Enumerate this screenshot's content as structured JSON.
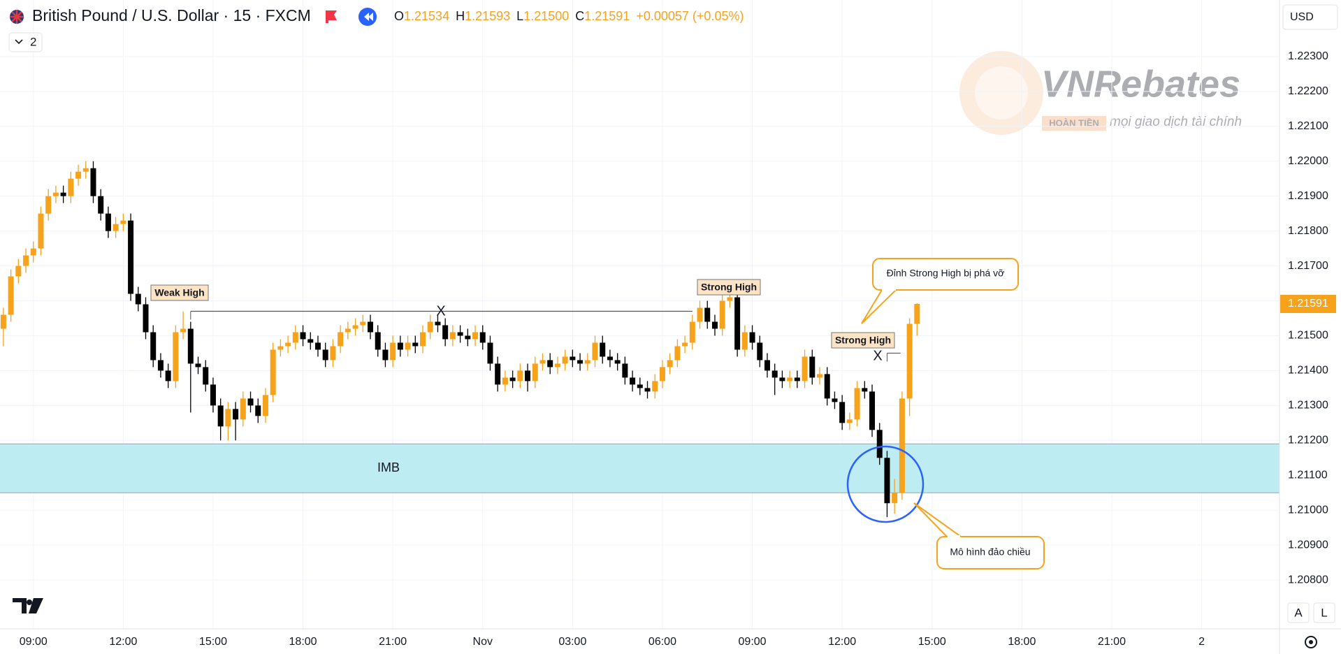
{
  "header": {
    "title": "British Pound / U.S. Dollar · 15 · FXCM",
    "fields": [
      {
        "label": "O",
        "value": "1.21534"
      },
      {
        "label": "H",
        "value": "1.21593"
      },
      {
        "label": "L",
        "value": "1.21500"
      },
      {
        "label": "C",
        "value": "1.21591"
      }
    ],
    "change": "+0.00057 (+0.05%)",
    "currency": "USD",
    "indicator_count": "2"
  },
  "controls": {
    "auto": "A",
    "log": "L"
  },
  "watermark": {
    "brand": "VNRebates",
    "badge": "HOÀN TIỀN",
    "slogan": "mọi giao dịch tài chính"
  },
  "chart_data": {
    "type": "candlestick",
    "colors": {
      "up": "#f7a21b",
      "down": "#000000"
    },
    "grid": true,
    "xlim": [
      7.886,
      50.6
    ],
    "xticks": [
      {
        "value": 9,
        "label": "09:00"
      },
      {
        "value": 12,
        "label": "12:00"
      },
      {
        "value": 15,
        "label": "15:00"
      },
      {
        "value": 18,
        "label": "18:00"
      },
      {
        "value": 21,
        "label": "21:00"
      },
      {
        "value": 24,
        "label": "Nov"
      },
      {
        "value": 27,
        "label": "03:00"
      },
      {
        "value": 30,
        "label": "06:00"
      },
      {
        "value": 33,
        "label": "09:00"
      },
      {
        "value": 36,
        "label": "12:00"
      },
      {
        "value": 39,
        "label": "15:00"
      },
      {
        "value": 42,
        "label": "18:00"
      },
      {
        "value": 45,
        "label": "21:00"
      },
      {
        "value": 48,
        "label": "2"
      }
    ],
    "ylim": [
      1.2066,
      1.22462
    ],
    "yticks": [
      {
        "value": 1.208,
        "label": "1.20800"
      },
      {
        "value": 1.209,
        "label": "1.20900"
      },
      {
        "value": 1.21,
        "label": "1.21000"
      },
      {
        "value": 1.211,
        "label": "1.21100"
      },
      {
        "value": 1.212,
        "label": "1.21200"
      },
      {
        "value": 1.213,
        "label": "1.21300"
      },
      {
        "value": 1.214,
        "label": "1.21400"
      },
      {
        "value": 1.215,
        "label": "1.21500"
      },
      {
        "value": 1.216,
        "label": "1.21600"
      },
      {
        "value": 1.217,
        "label": "1.21700"
      },
      {
        "value": 1.218,
        "label": "1.21800"
      },
      {
        "value": 1.219,
        "label": "1.21900"
      },
      {
        "value": 1.22,
        "label": "1.22000"
      },
      {
        "value": 1.221,
        "label": "1.22100"
      },
      {
        "value": 1.222,
        "label": "1.22200"
      },
      {
        "value": 1.223,
        "label": "1.22300"
      }
    ],
    "x": [
      8,
      8.25,
      8.5,
      8.75,
      9,
      9.25,
      9.5,
      9.75,
      10,
      10.25,
      10.5,
      10.75,
      11,
      11.25,
      11.5,
      11.75,
      12,
      12.25,
      12.5,
      12.75,
      13,
      13.25,
      13.5,
      13.75,
      14,
      14.25,
      14.5,
      14.75,
      15,
      15.25,
      15.5,
      15.75,
      16,
      16.25,
      16.5,
      16.75,
      17,
      17.25,
      17.5,
      17.75,
      18,
      18.25,
      18.5,
      18.75,
      19,
      19.25,
      19.5,
      19.75,
      20,
      20.25,
      20.5,
      20.75,
      21,
      21.25,
      21.5,
      21.75,
      22,
      22.25,
      22.5,
      22.75,
      23,
      23.25,
      23.5,
      23.75,
      24,
      24.25,
      24.5,
      24.75,
      25,
      25.25,
      25.5,
      25.75,
      26,
      26.25,
      26.5,
      26.75,
      27,
      27.25,
      27.5,
      27.75,
      28,
      28.25,
      28.5,
      28.75,
      29,
      29.25,
      29.5,
      29.75,
      30,
      30.25,
      30.5,
      30.75,
      31,
      31.25,
      31.5,
      31.75,
      32,
      32.25,
      32.5,
      32.75,
      33,
      33.25,
      33.5,
      33.75,
      34,
      34.25,
      34.5,
      34.75,
      35,
      35.25,
      35.5,
      35.75,
      36,
      36.25,
      36.5,
      36.75,
      37,
      37.25,
      37.5,
      37.75,
      38,
      38.25,
      38.5
    ],
    "open": [
      1.2152,
      1.2156,
      1.2167,
      1.217,
      1.2173,
      1.2175,
      1.2185,
      1.219,
      1.2191,
      1.219,
      1.2195,
      1.2197,
      1.2198,
      1.219,
      1.2185,
      1.218,
      1.2182,
      1.2183,
      1.2162,
      1.2159,
      1.2151,
      1.2143,
      1.214,
      1.2137,
      1.2151,
      1.2152,
      1.2142,
      1.2141,
      1.2136,
      1.213,
      1.2124,
      1.2129,
      1.2126,
      1.2132,
      1.213,
      1.2127,
      1.2133,
      1.2146,
      1.2147,
      1.2148,
      1.2151,
      1.2149,
      1.2148,
      1.2146,
      1.2143,
      1.2147,
      1.2151,
      1.2152,
      1.2153,
      1.2154,
      1.2151,
      1.2146,
      1.2143,
      1.2148,
      1.2146,
      1.2148,
      1.2147,
      1.2151,
      1.2154,
      1.2153,
      1.2149,
      1.2151,
      1.215,
      1.2149,
      1.2151,
      1.2148,
      1.2142,
      1.2136,
      1.2138,
      1.2137,
      1.214,
      1.2137,
      1.2142,
      1.2143,
      1.2141,
      1.2142,
      1.2144,
      1.2143,
      1.2142,
      1.2143,
      1.2148,
      1.2144,
      1.2143,
      1.2142,
      1.2138,
      1.2136,
      1.2135,
      1.2134,
      1.2137,
      1.2141,
      1.2143,
      1.2147,
      1.2148,
      1.2154,
      1.2158,
      1.2154,
      1.2152,
      1.216,
      1.2161,
      1.2146,
      1.2151,
      1.2148,
      1.2143,
      1.214,
      1.2138,
      1.2137,
      1.2138,
      1.2137,
      1.2144,
      1.2138,
      1.2139,
      1.2132,
      1.2131,
      1.2125,
      1.2126,
      1.2135,
      1.2134,
      1.2123,
      1.2115,
      1.2102,
      1.2105,
      1.2132,
      1.21534
    ],
    "high": [
      1.2158,
      1.2169,
      1.2172,
      1.2175,
      1.2177,
      1.2187,
      1.2192,
      1.2193,
      1.2193,
      1.2197,
      1.2199,
      1.22,
      1.22,
      1.2192,
      1.2187,
      1.2184,
      1.2185,
      1.2185,
      1.2164,
      1.2161,
      1.2153,
      1.2145,
      1.2142,
      1.2153,
      1.2157,
      1.2154,
      1.2144,
      1.2143,
      1.2138,
      1.2132,
      1.2131,
      1.2131,
      1.2134,
      1.2134,
      1.2132,
      1.2135,
      1.2148,
      1.2149,
      1.215,
      1.2153,
      1.2153,
      1.2151,
      1.215,
      1.2148,
      1.2149,
      1.2153,
      1.2154,
      1.2155,
      1.2156,
      1.2156,
      1.2153,
      1.2148,
      1.215,
      1.215,
      1.215,
      1.215,
      1.2153,
      1.2156,
      1.2156,
      1.2155,
      1.2153,
      1.2153,
      1.2152,
      1.2153,
      1.2153,
      1.215,
      1.2144,
      1.214,
      1.214,
      1.2142,
      1.2142,
      1.2144,
      1.2145,
      1.2145,
      1.2144,
      1.2146,
      1.2146,
      1.2145,
      1.2145,
      1.215,
      1.215,
      1.2146,
      1.2145,
      1.2144,
      1.214,
      1.2138,
      1.2137,
      1.2139,
      1.2143,
      1.2145,
      1.2149,
      1.215,
      1.2156,
      1.216,
      1.216,
      1.2156,
      1.2162,
      1.2163,
      1.2163,
      1.2153,
      1.2153,
      1.215,
      1.2145,
      1.2142,
      1.214,
      1.214,
      1.214,
      1.2146,
      1.2146,
      1.2141,
      1.2141,
      1.2134,
      1.2133,
      1.2128,
      1.2137,
      1.2137,
      1.2136,
      1.2125,
      1.2117,
      1.2109,
      1.2134,
      1.2155,
      1.21593
    ],
    "low": [
      1.2147,
      1.2154,
      1.2165,
      1.2168,
      1.2171,
      1.2173,
      1.2183,
      1.2188,
      1.2188,
      1.2188,
      1.2193,
      1.2195,
      1.2188,
      1.2183,
      1.2178,
      1.2178,
      1.218,
      1.216,
      1.2157,
      1.2149,
      1.2141,
      1.2138,
      1.2135,
      1.2135,
      1.2149,
      1.2128,
      1.2139,
      1.2134,
      1.2128,
      1.212,
      1.212,
      1.212,
      1.2124,
      1.2128,
      1.2125,
      1.2125,
      1.2131,
      1.2144,
      1.2145,
      1.2146,
      1.2147,
      1.2146,
      1.2144,
      1.2141,
      1.2141,
      1.2145,
      1.2149,
      1.215,
      1.2151,
      1.2149,
      1.2144,
      1.2141,
      1.2141,
      1.2144,
      1.2144,
      1.2145,
      1.2145,
      1.2149,
      1.2151,
      1.2147,
      1.2147,
      1.2148,
      1.2147,
      1.2147,
      1.2146,
      1.214,
      1.2134,
      1.2134,
      1.2135,
      1.2135,
      1.2134,
      1.2135,
      1.214,
      1.2139,
      1.2139,
      1.214,
      1.2141,
      1.214,
      1.214,
      1.2141,
      1.2142,
      1.2141,
      1.214,
      1.2136,
      1.2134,
      1.2133,
      1.2132,
      1.2132,
      1.2135,
      1.2139,
      1.2141,
      1.2145,
      1.2146,
      1.2152,
      1.2152,
      1.215,
      1.215,
      1.2158,
      1.2144,
      1.2144,
      1.2146,
      1.2141,
      1.2138,
      1.2133,
      1.2135,
      1.2135,
      1.2135,
      1.2135,
      1.2136,
      1.2136,
      1.213,
      1.2129,
      1.2123,
      1.2123,
      1.2124,
      1.2132,
      1.2121,
      1.2113,
      1.2098,
      1.2099,
      1.2103,
      1.2127,
      1.215
    ],
    "close": [
      1.2156,
      1.2167,
      1.217,
      1.2173,
      1.2175,
      1.2185,
      1.219,
      1.2191,
      1.219,
      1.2195,
      1.2197,
      1.2198,
      1.219,
      1.2185,
      1.218,
      1.2182,
      1.2183,
      1.2162,
      1.2159,
      1.2151,
      1.2143,
      1.214,
      1.2137,
      1.2151,
      1.2152,
      1.2142,
      1.2141,
      1.2136,
      1.213,
      1.2124,
      1.2129,
      1.2126,
      1.2132,
      1.213,
      1.2127,
      1.2133,
      1.2146,
      1.2147,
      1.2148,
      1.2151,
      1.2149,
      1.2148,
      1.2146,
      1.2143,
      1.2147,
      1.2151,
      1.2152,
      1.2153,
      1.2154,
      1.2151,
      1.2146,
      1.2143,
      1.2148,
      1.2146,
      1.2148,
      1.2147,
      1.2151,
      1.2154,
      1.2153,
      1.2149,
      1.2151,
      1.215,
      1.2149,
      1.2151,
      1.2148,
      1.2142,
      1.2136,
      1.2138,
      1.2137,
      1.214,
      1.2137,
      1.2142,
      1.2143,
      1.2141,
      1.2142,
      1.2144,
      1.2143,
      1.2142,
      1.2143,
      1.2148,
      1.2144,
      1.2143,
      1.2142,
      1.2138,
      1.2136,
      1.2135,
      1.2134,
      1.2137,
      1.2141,
      1.2143,
      1.2147,
      1.2148,
      1.2154,
      1.2158,
      1.2154,
      1.2152,
      1.216,
      1.2161,
      1.2146,
      1.2151,
      1.2148,
      1.2143,
      1.214,
      1.2138,
      1.2137,
      1.2138,
      1.2137,
      1.2144,
      1.2138,
      1.2139,
      1.2132,
      1.2131,
      1.2125,
      1.2126,
      1.2135,
      1.2134,
      1.2123,
      1.2115,
      1.2102,
      1.2105,
      1.2132,
      1.21534,
      1.21591
    ],
    "zone": {
      "label": "IMB",
      "range": [
        1.2105,
        1.2119
      ],
      "color": "#bdecf2"
    },
    "levels": [
      {
        "value": 1.2157,
        "x": [
          14.25,
          31
        ]
      },
      {
        "value": 1.2145,
        "x": [
          37.5,
          37.95
        ]
      }
    ],
    "annotations": {
      "weak_high": "Weak High",
      "strong_high_1": "Strong High",
      "strong_high_2": "Strong High",
      "break_1": "X",
      "break_2": "X",
      "callout_break": "Đỉnh Strong High bị phá vỡ",
      "callout_reversal": "Mô hình đảo chiều"
    }
  }
}
